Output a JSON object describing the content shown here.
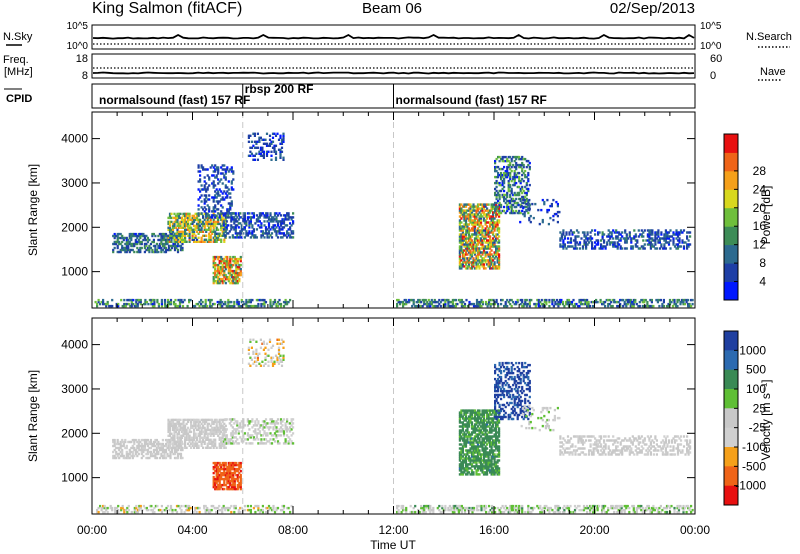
{
  "header": {
    "station": "King Salmon (fitACF)",
    "beam": "Beam 06",
    "date": "02/Sep/2013"
  },
  "strips": {
    "nsky": {
      "label": "N.Sky",
      "ticks": [
        "10^5",
        "10^0"
      ]
    },
    "nsearch": {
      "label": "N.Search",
      "ticks": [
        "10^5",
        "10^0"
      ]
    },
    "freq": {
      "label_lines": [
        "Freq.",
        "[MHz]"
      ],
      "ticks": [
        "18",
        "8"
      ]
    },
    "nave": {
      "label": "Nave",
      "ticks": [
        "60",
        "0"
      ]
    },
    "cpid": {
      "label": "CPID",
      "segments": [
        {
          "text": "normalsound (fast) 157 RF",
          "start": 0.2
        },
        {
          "text": "rbsp 200 RF",
          "start": 6.0
        },
        {
          "text": "normalsound (fast) 157 RF",
          "start": 12.0
        }
      ],
      "boundaries": [
        6.0,
        12.0
      ]
    }
  },
  "time_axis": {
    "label": "Time UT",
    "ticks": [
      "00:00",
      "04:00",
      "08:00",
      "12:00",
      "16:00",
      "20:00",
      "00:00"
    ]
  },
  "chart_data": [
    {
      "type": "heatmap",
      "panel": "power",
      "x_range": [
        0,
        24
      ],
      "ylabel": "Slant Range [km]",
      "ylim": [
        180,
        4600
      ],
      "yticks": [
        1000,
        2000,
        3000,
        4000
      ],
      "colorbar": {
        "label": "Power [dB]",
        "ticks": [
          "4",
          "8",
          "12",
          "16",
          "20",
          "24",
          "28"
        ],
        "colors": [
          "#0018ff",
          "#1e3fa6",
          "#2c6a8f",
          "#3d8c57",
          "#6fbf3c",
          "#d8d81e",
          "#f5a01a",
          "#ef6418",
          "#e81010"
        ]
      },
      "regions": [
        {
          "t0": 0.1,
          "t1": 7.9,
          "r0": 200,
          "r1": 380,
          "density": 0.45,
          "v0": 0.1,
          "v1": 0.55
        },
        {
          "t0": 0.8,
          "t1": 3.6,
          "r0": 1420,
          "r1": 1830,
          "density": 0.55,
          "v0": 0.1,
          "v1": 0.45
        },
        {
          "t0": 3.0,
          "t1": 5.3,
          "r0": 1650,
          "r1": 2300,
          "density": 0.65,
          "v0": 0.2,
          "v1": 0.8
        },
        {
          "t0": 4.2,
          "t1": 5.6,
          "r0": 2200,
          "r1": 3400,
          "density": 0.3,
          "v0": 0.05,
          "v1": 0.3
        },
        {
          "t0": 5.2,
          "t1": 8.0,
          "r0": 1750,
          "r1": 2300,
          "density": 0.45,
          "v0": 0.05,
          "v1": 0.35
        },
        {
          "t0": 4.8,
          "t1": 5.9,
          "r0": 720,
          "r1": 1350,
          "density": 0.7,
          "v0": 0.3,
          "v1": 0.95
        },
        {
          "t0": 6.2,
          "t1": 7.6,
          "r0": 3500,
          "r1": 4100,
          "density": 0.3,
          "v0": 0.05,
          "v1": 0.3
        },
        {
          "t0": 12.1,
          "t1": 23.9,
          "r0": 200,
          "r1": 380,
          "density": 0.5,
          "v0": 0.1,
          "v1": 0.5
        },
        {
          "t0": 14.6,
          "t1": 16.2,
          "r0": 1050,
          "r1": 2500,
          "density": 0.7,
          "v0": 0.2,
          "v1": 0.95
        },
        {
          "t0": 16.0,
          "t1": 17.4,
          "r0": 2300,
          "r1": 3600,
          "density": 0.45,
          "v0": 0.05,
          "v1": 0.55
        },
        {
          "t0": 18.6,
          "t1": 23.8,
          "r0": 1500,
          "r1": 1950,
          "density": 0.4,
          "v0": 0.05,
          "v1": 0.35
        },
        {
          "t0": 17.0,
          "t1": 18.6,
          "r0": 2050,
          "r1": 2600,
          "density": 0.15,
          "v0": 0.05,
          "v1": 0.3
        }
      ]
    },
    {
      "type": "heatmap",
      "panel": "velocity",
      "x_range": [
        0,
        24
      ],
      "ylabel": "Slant Range [km]",
      "ylim": [
        180,
        4600
      ],
      "yticks": [
        1000,
        2000,
        3000,
        4000
      ],
      "colorbar": {
        "label": "Velocity [m s⁻¹]",
        "ticks": [
          "1000",
          "500",
          "100",
          "25",
          "-25",
          "-100",
          "-500",
          "-1000"
        ],
        "colors": [
          "#1f3fa0",
          "#2c6ab0",
          "#3a8a55",
          "#5fbf35",
          "#c8c8c8",
          "#d0d0d0",
          "#f5a01a",
          "#ef6418",
          "#e81010"
        ]
      },
      "regions": [
        {
          "t0": 0.1,
          "t1": 7.9,
          "r0": 200,
          "r1": 380,
          "density": 0.35,
          "v0": 0.35,
          "v1": 0.7
        },
        {
          "t0": 0.8,
          "t1": 3.6,
          "r0": 1420,
          "r1": 1830,
          "density": 0.55,
          "v0": 0.45,
          "v1": 0.6
        },
        {
          "t0": 3.0,
          "t1": 5.3,
          "r0": 1650,
          "r1": 2300,
          "density": 0.65,
          "v0": 0.45,
          "v1": 0.6
        },
        {
          "t0": 5.2,
          "t1": 8.0,
          "r0": 1750,
          "r1": 2300,
          "density": 0.4,
          "v0": 0.4,
          "v1": 0.65
        },
        {
          "t0": 4.8,
          "t1": 5.9,
          "r0": 720,
          "r1": 1350,
          "density": 0.75,
          "v0": 0.78,
          "v1": 0.92
        },
        {
          "t0": 6.2,
          "t1": 7.6,
          "r0": 3500,
          "r1": 4100,
          "density": 0.25,
          "v0": 0.4,
          "v1": 0.8
        },
        {
          "t0": 12.1,
          "t1": 23.9,
          "r0": 200,
          "r1": 380,
          "density": 0.45,
          "v0": 0.3,
          "v1": 0.65
        },
        {
          "t0": 14.6,
          "t1": 16.2,
          "r0": 1050,
          "r1": 2500,
          "density": 0.7,
          "v0": 0.22,
          "v1": 0.36
        },
        {
          "t0": 16.0,
          "t1": 17.4,
          "r0": 2300,
          "r1": 3600,
          "density": 0.45,
          "v0": 0.0,
          "v1": 0.15
        },
        {
          "t0": 18.6,
          "t1": 23.8,
          "r0": 1500,
          "r1": 1950,
          "density": 0.4,
          "v0": 0.45,
          "v1": 0.6
        },
        {
          "t0": 17.0,
          "t1": 18.6,
          "r0": 2050,
          "r1": 2600,
          "density": 0.15,
          "v0": 0.4,
          "v1": 0.6
        }
      ]
    }
  ]
}
